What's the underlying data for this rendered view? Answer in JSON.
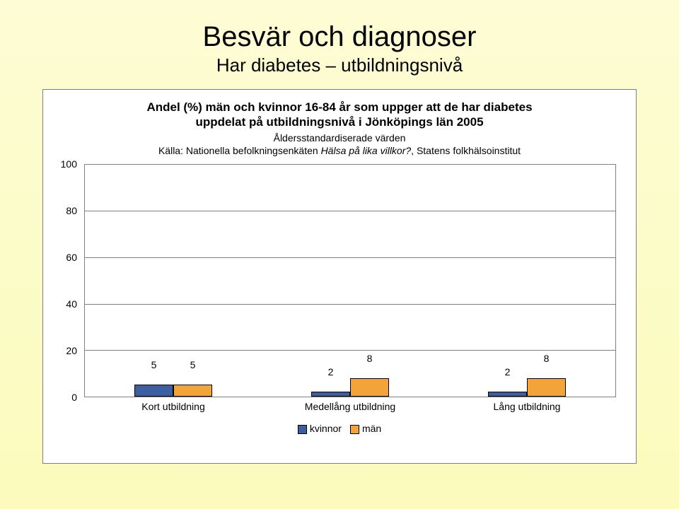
{
  "slide": {
    "title": "Besvär och diagnoser",
    "subtitle": "Har diabetes – utbildningsnivå"
  },
  "chart": {
    "type": "grouped-bar",
    "title_line1": "Andel (%) män och kvinnor 16-84 år som uppger att de har diabetes",
    "title_line2": "uppdelat på utbildningsnivå i Jönköpings län 2005",
    "sub_line1": "Åldersstandardiserade värden",
    "sub_line2_prefix": "Källa: Nationella befolkningsenkäten ",
    "sub_line2_italic": "Hälsa på lika villkor?",
    "sub_line2_suffix": ", Statens folkhälsoinstitut",
    "y": {
      "min": 0,
      "max": 100,
      "ticks": [
        0,
        20,
        40,
        60,
        80,
        100
      ]
    },
    "series": [
      {
        "key": "kvinnor",
        "label": "kvinnor",
        "color": "#3b5fa1"
      },
      {
        "key": "man",
        "label": "män",
        "color": "#f2a33a"
      }
    ],
    "categories": [
      {
        "label": "Kort utbildning",
        "values": {
          "kvinnor": 5,
          "man": 5
        }
      },
      {
        "label": "Medellång utbildning",
        "values": {
          "kvinnor": 2,
          "man": 8
        }
      },
      {
        "label": "Lång utbildning",
        "values": {
          "kvinnor": 2,
          "man": 8
        }
      }
    ],
    "bar_width_pct": 22,
    "label_fontsize": 14,
    "grid_color": "#808080",
    "background_color": "#ffffff"
  }
}
